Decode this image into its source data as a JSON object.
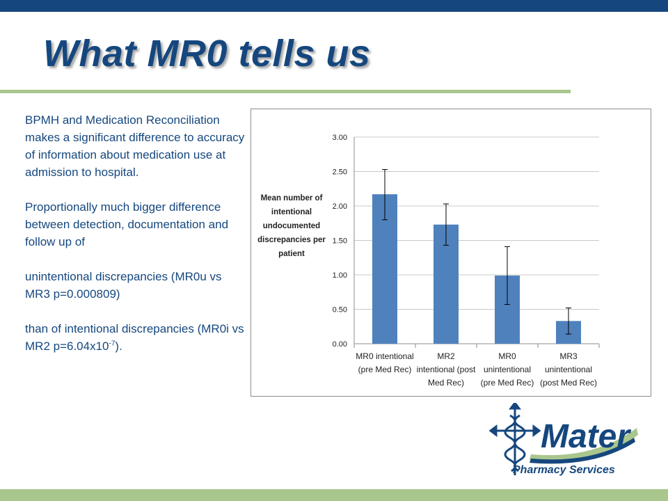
{
  "slide": {
    "title": "What MR0 tells us",
    "paragraphs": [
      "BPMH and Medication Reconciliation makes a significant difference to accuracy of information about medication use at admission to hospital.",
      "Proportionally much bigger difference between detection, documentation and follow up of",
      "unintentional discrepancies (MR0u vs MR3  p=0.000809)"
    ],
    "last_paragraph": {
      "before": "than of intentional discrepancies (MR0i vs MR2  p=6.04x10",
      "superscript": "-7",
      "after": ")."
    }
  },
  "logo": {
    "name": "Mater",
    "subtitle": "Pharmacy Services"
  },
  "colors": {
    "navy": "#15477e",
    "green": "#a9c68c",
    "bar": "#4f81bd"
  },
  "chart_data": {
    "type": "bar",
    "categories": [
      [
        "MR0 intentional",
        "(pre Med Rec)"
      ],
      [
        "MR2",
        "intentional (post",
        "Med Rec)"
      ],
      [
        "MR0",
        "unintentional",
        "(pre Med Rec)"
      ],
      [
        "MR3",
        "unintentional",
        "(post Med Rec)"
      ]
    ],
    "values": [
      2.17,
      1.73,
      0.99,
      0.33
    ],
    "error_bars": [
      [
        1.8,
        2.53
      ],
      [
        1.43,
        2.03
      ],
      [
        0.57,
        1.41
      ],
      [
        0.14,
        0.52
      ]
    ],
    "ylabel": [
      "Mean number of",
      "intentional",
      "undocumented",
      "discrepancies per",
      "patient"
    ],
    "ylim": [
      0,
      3
    ],
    "yticks": [
      "0.00",
      "0.50",
      "1.00",
      "1.50",
      "2.00",
      "2.50",
      "3.00"
    ],
    "grid": true,
    "legend": "none"
  }
}
